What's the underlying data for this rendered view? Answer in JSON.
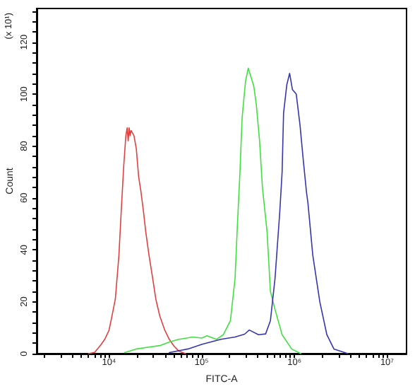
{
  "chart_data": {
    "type": "line",
    "ylabel": "Count",
    "xlabel": "FITC-A",
    "annotations": [
      "(x 10¹)"
    ],
    "log": "x",
    "marker": "none",
    "line_style": "solid",
    "xlim": [
      1660,
      16200000
    ],
    "ylim": [
      0,
      133
    ],
    "xticks": [
      {
        "value": 2000,
        "label": null
      },
      {
        "value": 3000,
        "label": null
      },
      {
        "value": 4000,
        "label": null
      },
      {
        "value": 5000,
        "label": null
      },
      {
        "value": 6000,
        "label": null
      },
      {
        "value": 7000,
        "label": null
      },
      {
        "value": 8000,
        "label": null
      },
      {
        "value": 9000,
        "label": null
      },
      {
        "value": 10000,
        "label": "10⁴"
      },
      {
        "value": 20000,
        "label": null
      },
      {
        "value": 30000,
        "label": null
      },
      {
        "value": 40000,
        "label": null
      },
      {
        "value": 50000,
        "label": null
      },
      {
        "value": 60000,
        "label": null
      },
      {
        "value": 70000,
        "label": null
      },
      {
        "value": 80000,
        "label": null
      },
      {
        "value": 90000,
        "label": null
      },
      {
        "value": 100000,
        "label": "10⁵"
      },
      {
        "value": 200000,
        "label": null
      },
      {
        "value": 300000,
        "label": null
      },
      {
        "value": 400000,
        "label": null
      },
      {
        "value": 500000,
        "label": null
      },
      {
        "value": 600000,
        "label": null
      },
      {
        "value": 700000,
        "label": null
      },
      {
        "value": 800000,
        "label": null
      },
      {
        "value": 900000,
        "label": null
      },
      {
        "value": 1000000,
        "label": "10⁶"
      },
      {
        "value": 2000000,
        "label": null
      },
      {
        "value": 3000000,
        "label": null
      },
      {
        "value": 4000000,
        "label": null
      },
      {
        "value": 5000000,
        "label": null
      },
      {
        "value": 6000000,
        "label": null
      },
      {
        "value": 7000000,
        "label": null
      },
      {
        "value": 8000000,
        "label": null
      },
      {
        "value": 9000000,
        "label": null
      },
      {
        "value": 10000000,
        "label": "10⁷"
      }
    ],
    "yticks": [
      0,
      {
        "value": 4,
        "label": null
      },
      {
        "value": 8,
        "label": null
      },
      {
        "value": 12,
        "label": null
      },
      {
        "value": 16,
        "label": null
      },
      20,
      {
        "value": 24,
        "label": null
      },
      {
        "value": 28,
        "label": null
      },
      {
        "value": 32,
        "label": null
      },
      {
        "value": 36,
        "label": null
      },
      40,
      {
        "value": 44,
        "label": null
      },
      {
        "value": 48,
        "label": null
      },
      {
        "value": 52,
        "label": null
      },
      {
        "value": 56,
        "label": null
      },
      60,
      {
        "value": 64,
        "label": null
      },
      {
        "value": 68,
        "label": null
      },
      {
        "value": 72,
        "label": null
      },
      {
        "value": 76,
        "label": null
      },
      80,
      {
        "value": 84,
        "label": null
      },
      {
        "value": 88,
        "label": null
      },
      {
        "value": 92,
        "label": null
      },
      {
        "value": 96,
        "label": null
      },
      100,
      {
        "value": 104,
        "label": null
      },
      {
        "value": 108,
        "label": null
      },
      {
        "value": 112,
        "label": null
      },
      {
        "value": 116,
        "label": null
      },
      120,
      {
        "value": 124,
        "label": null
      },
      {
        "value": 128,
        "label": null
      },
      {
        "value": 132,
        "label": null
      }
    ],
    "series": [
      {
        "color": "#e04040",
        "x": [
          6000,
          7000,
          8200,
          9000,
          10000,
          10700,
          11700,
          12800,
          13600,
          14400,
          15200,
          15700,
          16100,
          16500,
          16900,
          17300,
          18600,
          19700,
          20900,
          22000,
          23500,
          24900,
          27000,
          29600,
          32000,
          35300,
          40000,
          44700,
          50000,
          56500,
          67000
        ],
        "values": [
          0,
          0.5,
          3.5,
          5.5,
          9,
          14,
          21,
          38,
          56,
          72,
          84,
          87,
          82,
          87,
          84,
          86,
          84,
          79,
          68,
          63,
          55,
          47,
          38,
          29,
          21,
          14.5,
          9,
          5.5,
          3,
          1,
          0
        ]
      },
      {
        "color": "#40e040",
        "x": [
          14700,
          19700,
          27000,
          35300,
          45000,
          56500,
          80000,
          100000,
          114000,
          144000,
          171000,
          204000,
          229000,
          243000,
          258000,
          273000,
          297000,
          318000,
          344000,
          365000,
          388000,
          421000,
          452000,
          507000,
          551000,
          618000,
          737000,
          933000,
          1175000
        ],
        "values": [
          0.4,
          1.8,
          2.5,
          3.1,
          4.5,
          5.5,
          6.4,
          6,
          6.9,
          5.5,
          7.3,
          12.7,
          29,
          50,
          69,
          91,
          105,
          110,
          106,
          103,
          96,
          82,
          64,
          47,
          24,
          17,
          7.3,
          1.8,
          0
        ]
      },
      {
        "color": "#3535b0",
        "x": [
          44700,
          71000,
          101000,
          161000,
          229000,
          290000,
          326000,
          410000,
          489000,
          551000,
          618000,
          695000,
          737000,
          764000,
          828000,
          888000,
          953000,
          1047000,
          1150000,
          1247000,
          1352000,
          1400000,
          1578000,
          1879000,
          2239000,
          2667000,
          3784000
        ],
        "values": [
          0.4,
          1.8,
          3.6,
          5.5,
          6.4,
          7.5,
          9.1,
          7.3,
          7.6,
          12.7,
          29,
          54.5,
          70,
          92.7,
          103.6,
          108,
          101.7,
          100,
          88,
          74.5,
          62,
          58,
          38,
          20,
          7.3,
          1.8,
          0
        ]
      }
    ]
  }
}
